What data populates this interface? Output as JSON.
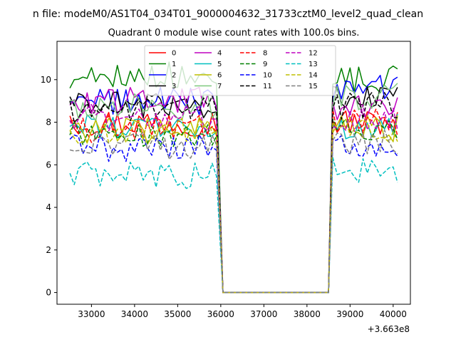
{
  "chart_data": {
    "type": "line",
    "suptitle": "n file: modeM0/AS1T04_034T01_9000004632_31733cztM0_level2_quad_clean",
    "title": "Quadrant 0 module wise count rates with 100.0s bins.",
    "xlabel": "",
    "ylabel": "",
    "x_offset_label": "+3.663e8",
    "xlim": [
      32200,
      40400
    ],
    "ylim": [
      -0.55,
      11.8
    ],
    "xticks": [
      33000,
      34000,
      35000,
      36000,
      37000,
      38000,
      39000,
      40000
    ],
    "yticks": [
      0,
      2,
      4,
      6,
      8,
      10
    ],
    "grid": false,
    "legend_position": "upper-center",
    "legend_columns": 4,
    "gap": {
      "start": 36050,
      "end": 38500,
      "value": 0
    },
    "x_segment_1": [
      32500,
      32600,
      32700,
      32800,
      32900,
      33000,
      33100,
      33200,
      33300,
      33400,
      33500,
      33600,
      33700,
      33800,
      33900,
      34000,
      34100,
      34200,
      34300,
      34400,
      34500,
      34600,
      34700,
      34800,
      34900,
      35000,
      35100,
      35200,
      35300,
      35400,
      35500,
      35600,
      35700,
      35800,
      35900
    ],
    "x_segment_2": [
      38600,
      38700,
      38800,
      38900,
      39000,
      39100,
      39200,
      39300,
      39400,
      39500,
      39600,
      39700,
      39800,
      39900,
      40000,
      40100
    ],
    "series": [
      {
        "name": "0",
        "color": "#ff0000",
        "dash": "solid",
        "level1": 8.0,
        "level2": 8.0,
        "first": 8.3
      },
      {
        "name": "1",
        "color": "#008000",
        "dash": "solid",
        "level1": 10.2,
        "level2": 10.0,
        "first": 9.6
      },
      {
        "name": "2",
        "color": "#0000ff",
        "dash": "solid",
        "level1": 9.0,
        "level2": 9.6,
        "first": 9.0
      },
      {
        "name": "3",
        "color": "#000000",
        "dash": "solid",
        "level1": 8.8,
        "level2": 9.1,
        "first": 9.2
      },
      {
        "name": "4",
        "color": "#bf00bf",
        "dash": "solid",
        "level1": 9.0,
        "level2": 8.6,
        "first": 8.8
      },
      {
        "name": "5",
        "color": "#00bfbf",
        "dash": "solid",
        "level1": 7.8,
        "level2": 7.8,
        "first": 7.8
      },
      {
        "name": "6",
        "color": "#bfbf00",
        "dash": "solid",
        "level1": 7.6,
        "level2": 7.7,
        "first": 7.6
      },
      {
        "name": "7",
        "color": "#7fc97f",
        "dash": "solid",
        "level1": 8.7,
        "level2": 9.2,
        "first": 9.0
      },
      {
        "name": "8",
        "color": "#ff0000",
        "dash": "dashed",
        "level1": 7.7,
        "level2": 8.0,
        "first": 8.0
      },
      {
        "name": "9",
        "color": "#008000",
        "dash": "dashed",
        "level1": 7.5,
        "level2": 7.8,
        "first": 7.4
      },
      {
        "name": "10",
        "color": "#0000ff",
        "dash": "dashed",
        "level1": 6.8,
        "level2": 7.0,
        "first": 7.2
      },
      {
        "name": "11",
        "color": "#000000",
        "dash": "dashed",
        "level1": 8.6,
        "level2": 8.8,
        "first": 9.0
      },
      {
        "name": "12",
        "color": "#bf00bf",
        "dash": "dashed",
        "level1": 8.2,
        "level2": 8.2,
        "first": 8.1
      },
      {
        "name": "13",
        "color": "#00bfbf",
        "dash": "dashed",
        "level1": 5.5,
        "level2": 5.7,
        "first": 5.6
      },
      {
        "name": "14",
        "color": "#bfbf00",
        "dash": "dashed",
        "level1": 7.6,
        "level2": 7.6,
        "first": 7.6
      },
      {
        "name": "15",
        "color": "#808080",
        "dash": "dashed",
        "level1": 6.9,
        "level2": 7.0,
        "first": 6.7
      }
    ]
  }
}
